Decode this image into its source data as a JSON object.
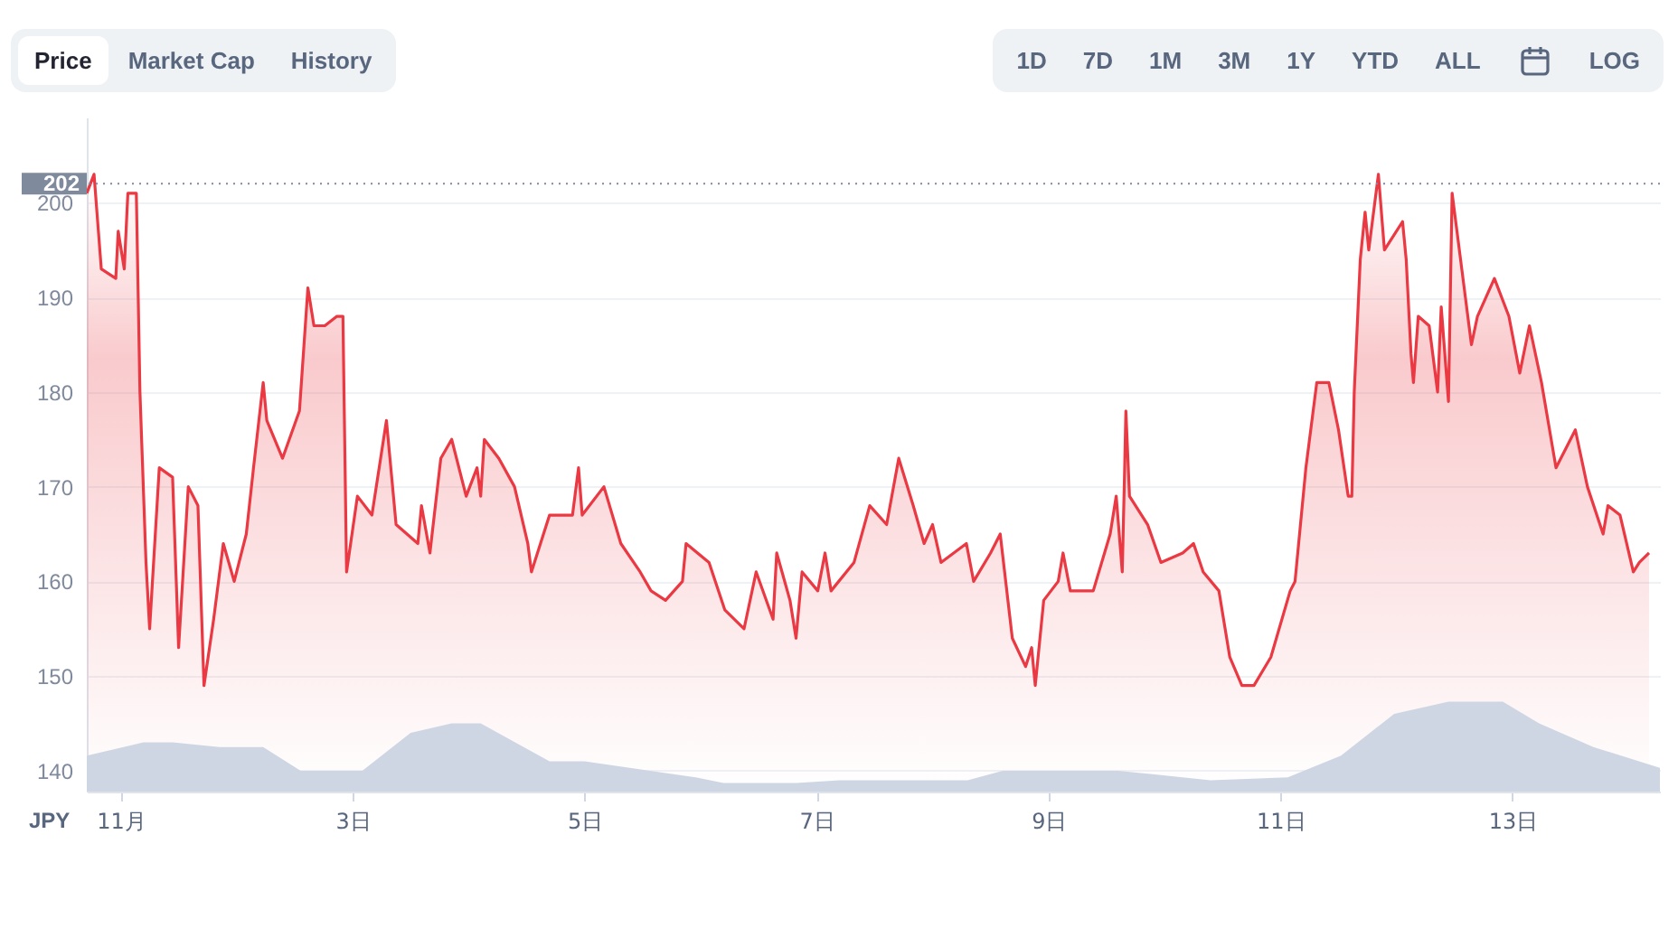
{
  "chart_data": {
    "type": "line",
    "annotations": [
      "Price",
      "Market Cap",
      "History",
      "1D",
      "7D",
      "1M",
      "3M",
      "1Y",
      "YTD",
      "ALL",
      "LOG",
      "JPY"
    ],
    "series": [
      {
        "type": "area",
        "color": "#ea3943",
        "x": [
          "--10-31T17:00",
          "--10-31T18:30",
          "--10-31T20:00",
          "--10-31T23:00",
          "--10-31T23:30",
          "--11-01T00:45",
          "--11-01T01:30",
          "--11-01T03:15",
          "--11-01T04:00",
          "--11-01T05:15",
          "--11-01T06:00",
          "--11-01T08:00",
          "--11-01T10:45",
          "--11-01T12:00",
          "--11-01T14:00",
          "--11-01T16:00",
          "--11-01T17:15",
          "--11-01T19:15",
          "--11-01T21:15",
          "--11-01T23:30",
          "--11-02T02:00",
          "--11-02T03:30",
          "--11-02T05:30",
          "--11-02T06:15",
          "--11-02T09:30",
          "--11-02T13:00",
          "--11-02T14:45",
          "--11-02T16:00",
          "--11-02T18:15",
          "--11-02T20:45",
          "--11-02T22:00",
          "--11-02T22:45",
          "--11-03T01:00",
          "--11-03T04:00",
          "--11-03T07:00",
          "--11-03T09:00",
          "--11-03T13:30",
          "--11-03T14:15",
          "--11-03T16:00",
          "--11-03T18:15",
          "--11-03T20:30",
          "--11-03T23:30",
          "--11-04T01:45",
          "--11-04T02:30",
          "--11-04T03:15",
          "--11-04T06:15",
          "--11-04T09:30",
          "--11-04T12:15",
          "--11-04T13:00",
          "--11-04T16:45",
          "--11-04T20:15",
          "--11-04T21:30",
          "--11-04T22:45",
          "--11-04T23:30",
          "--11-05T04:00",
          "--11-05T07:30",
          "--11-05T11:30",
          "--11-05T13:45",
          "--11-05T16:45",
          "--11-05T20:15",
          "--11-05T21:00",
          "--11-06T01:45",
          "--11-06T05:00",
          "--11-06T09:00",
          "--11-06T11:30",
          "--11-06T15:00",
          "--11-06T15:45",
          "--11-06T18:30",
          "--11-06T19:45",
          "--11-06T21:00",
          "--11-07T00:15",
          "--11-07T01:45",
          "--11-07T03:00",
          "--11-07T07:45",
          "--11-07T11:00",
          "--11-07T14:30",
          "--11-07T17:00",
          "--11-07T20:00",
          "--11-07T22:15",
          "--11-08T00:00",
          "--11-08T01:45",
          "--11-08T07:00",
          "--11-08T08:30",
          "--11-08T12:00",
          "--11-08T14:00",
          "--11-08T16:30",
          "--11-08T19:15",
          "--11-08T20:30",
          "--11-08T21:15",
          "--11-08T23:00",
          "--11-09T02:00",
          "--11-09T03:00",
          "--11-09T04:30",
          "--11-09T09:15",
          "--11-09T12:45",
          "--11-09T14:00",
          "--11-09T15:15",
          "--11-09T15:45",
          "--11-09T16:00",
          "--11-09T16:45",
          "--11-09T20:30",
          "--11-09T23:15",
          "--11-10T03:45",
          "--11-10T06:00",
          "--11-10T08:00",
          "--11-10T11:15",
          "--11-10T13:30",
          "--11-10T16:00",
          "--11-10T18:30",
          "--11-10T22:00",
          "--11-11T02:00",
          "--11-11T03:00",
          "--11-11T05:15",
          "--11-11T07:30",
          "--11-11T10:00",
          "--11-11T12:00",
          "--11-11T14:00",
          "--11-11T14:45",
          "--11-11T15:15",
          "--11-11T16:30",
          "--11-11T17:30",
          "--11-11T18:15",
          "--11-11T20:15",
          "--11-11T21:30",
          "--11-12T01:15",
          "--11-12T02:00",
          "--11-12T03:00",
          "--11-12T03:30",
          "--11-12T04:30",
          "--11-12T06:45",
          "--11-12T08:30",
          "--11-12T09:15",
          "--11-12T10:45",
          "--11-12T11:30",
          "--11-12T13:30",
          "--11-12T15:30",
          "--11-12T16:45",
          "--11-12T20:15",
          "--11-12T23:15",
          "--11-13T01:30",
          "--11-13T03:30",
          "--11-13T06:00",
          "--11-13T09:00",
          "--11-13T11:00",
          "--11-13T13:00",
          "--11-13T15:30",
          "--11-13T18:45",
          "--11-13T19:45",
          "--11-13T22:15",
          "--11-14T01:00",
          "--11-14T02:15",
          "--11-14T04:15"
        ],
        "values": [
          201,
          203,
          193,
          192,
          197,
          193,
          201,
          201,
          180,
          162,
          155,
          172,
          171,
          153,
          170,
          168,
          149,
          156,
          164,
          160,
          165,
          172,
          181,
          177,
          173,
          178,
          191,
          187,
          187,
          188,
          188,
          161,
          169,
          167,
          177,
          166,
          164,
          168,
          163,
          173,
          175,
          169,
          172,
          169,
          175,
          173,
          170,
          164,
          161,
          167,
          167,
          167,
          172,
          167,
          170,
          164,
          161,
          159,
          158,
          160,
          164,
          162,
          157,
          155,
          161,
          156,
          163,
          158,
          154,
          161,
          159,
          163,
          159,
          162,
          168,
          166,
          173,
          168,
          164,
          166,
          162,
          164,
          160,
          163,
          165,
          154,
          151,
          153,
          149,
          158,
          160,
          163,
          159,
          159,
          165,
          169,
          161,
          172,
          178,
          169,
          166,
          162,
          163,
          164,
          161,
          159,
          152,
          149,
          149,
          152,
          159,
          160,
          172,
          181,
          181,
          176,
          169,
          169,
          180,
          194,
          199,
          195,
          203,
          195,
          198,
          194,
          184,
          181,
          188,
          187,
          180,
          189,
          179,
          201,
          193,
          185,
          188,
          192,
          188,
          182,
          187,
          181,
          172,
          174,
          176,
          170,
          165,
          168,
          167,
          161,
          162,
          163
        ]
      },
      {
        "type": "area",
        "color": "#cfd6e3",
        "x": [
          "--10-31T17:00",
          "--11-01T04:45",
          "--11-01T10:45",
          "--11-01T20:30",
          "--11-02T05:30",
          "--11-02T13:15",
          "--11-03T02:00",
          "--11-03T12:00",
          "--11-03T20:30",
          "--11-04T02:30",
          "--11-04T16:45",
          "--11-05T00:00",
          "--11-05T23:00",
          "--11-06T04:45",
          "--11-06T19:45",
          "--11-07T04:45",
          "--11-08T07:15",
          "--11-08T14:30",
          "--11-09T14:30",
          "--11-10T09:30",
          "--11-11T01:30",
          "--11-11T12:30",
          "--11-11T23:30",
          "--11-12T10:45",
          "--11-12T22:00",
          "--11-13T05:30",
          "--11-13T16:45",
          "--11-14T06:30"
        ],
        "values": [
          141.6,
          143,
          143,
          142.5,
          142.5,
          140,
          140,
          144,
          145,
          145,
          141,
          141,
          139.3,
          138.7,
          138.7,
          139,
          139,
          140,
          140,
          139,
          139.3,
          141.6,
          146,
          147.3,
          147.3,
          145,
          142.5,
          140.3
        ]
      }
    ],
    "xlim": [
      "--10-31T17:00",
      "--11-14T06:30"
    ],
    "xticks": [
      {
        "value": "--11-01",
        "label": "11月"
      },
      {
        "value": "--11-03",
        "label": "3日"
      },
      {
        "value": "--11-05",
        "label": "5日"
      },
      {
        "value": "--11-07",
        "label": "7日"
      },
      {
        "value": "--11-09",
        "label": "9日"
      },
      {
        "value": "--11-11",
        "label": "11日"
      },
      {
        "value": "--11-13",
        "label": "13日"
      }
    ],
    "ylim": [
      137.8,
      209
    ],
    "yticks": [
      140,
      150,
      160,
      170,
      180,
      190,
      200
    ],
    "ref_lines": [
      {
        "axis": "y",
        "value": 202,
        "label": "202",
        "color": "#808a9d",
        "line_style": "dotted"
      }
    ],
    "grid": "y"
  }
}
